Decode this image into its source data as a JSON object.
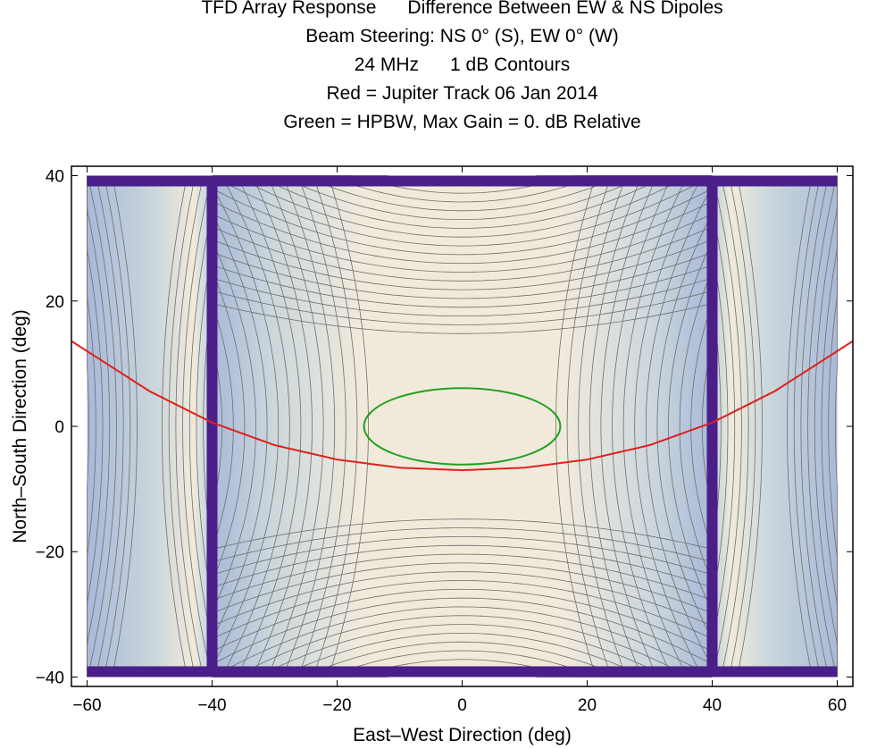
{
  "chart_data": {
    "type": "contour",
    "title_lines": [
      "TFD Array Response      Difference Between EW & NS Dipoles",
      "Beam Steering: NS 0° (S), EW 0° (W)",
      "24 MHz      1 dB Contours",
      "Red = Jupiter Track 06 Jan 2014",
      "Green = HPBW, Max Gain = 0. dB Relative"
    ],
    "xlabel": "East–West Direction (deg)",
    "ylabel": "North–South Direction (deg)",
    "xlim": [
      -62.5,
      62.5
    ],
    "ylim": [
      -41.5,
      41.5
    ],
    "xticks": [
      -60,
      -40,
      -20,
      0,
      20,
      40,
      60
    ],
    "yticks": [
      -40,
      -20,
      0,
      20,
      40
    ],
    "xtick_labels": [
      "−60",
      "−40",
      "−20",
      "0",
      "20",
      "40",
      "60"
    ],
    "ytick_labels": [
      "−40",
      "−20",
      "0",
      "20",
      "40"
    ],
    "data_extent": {
      "x": [
        -60,
        60
      ],
      "y": [
        -40,
        40
      ]
    },
    "nulls_x": [
      -40,
      40
    ],
    "jupiter_track": {
      "color": "#e0201c",
      "x": [
        -62.5,
        -50,
        -40,
        -30,
        -20,
        -10,
        0,
        10,
        20,
        30,
        40,
        50,
        62.5
      ],
      "y": [
        13.6,
        5.6,
        0.6,
        -3.0,
        -5.3,
        -6.6,
        -7.0,
        -6.6,
        -5.3,
        -3.0,
        0.6,
        5.6,
        13.6
      ]
    },
    "hpbw_contour": {
      "color": "#22a020",
      "center": [
        0,
        0
      ],
      "half_width_x": 15.7,
      "half_height_y": 6.1
    },
    "colors": {
      "high": "#f1eadb",
      "mid": "#cbd7dc",
      "low": "#a9b9d8",
      "null": "#4a1f8a",
      "contour_line": "#6e6e6e"
    }
  }
}
